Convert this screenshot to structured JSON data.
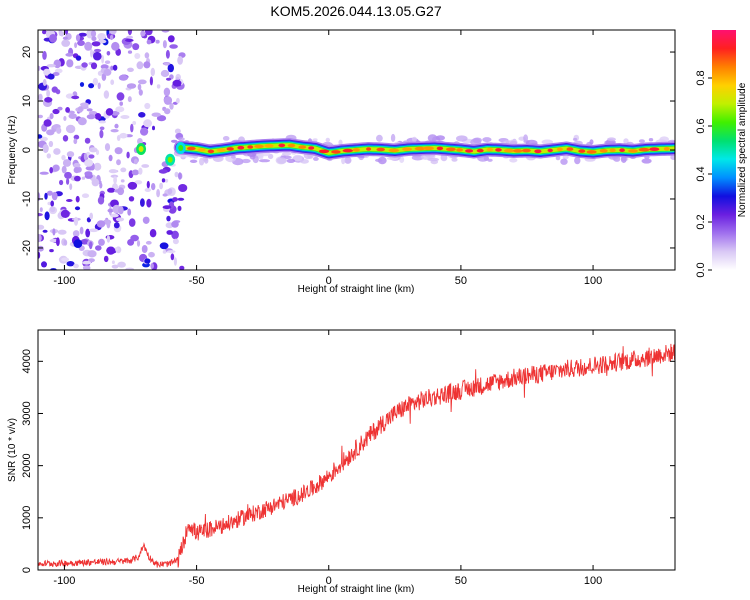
{
  "title": "KOM5.2026.044.13.05.G27",
  "colorbar": {
    "label": "Normalized spectral amplitude",
    "ticks": [
      0.0,
      0.2,
      0.4,
      0.6,
      0.8
    ],
    "tick_labels": [
      "0.0",
      "0.2",
      "0.4",
      "0.6",
      "0.8"
    ],
    "range": [
      0,
      1
    ],
    "stops": [
      "#ffffff",
      "#d9c8f5",
      "#a070ee",
      "#6a1fe0",
      "#1010e0",
      "#0090ff",
      "#00e8e8",
      "#00e070",
      "#40f000",
      "#c0f000",
      "#ffd000",
      "#ff8000",
      "#ff2020",
      "#ff1070"
    ]
  },
  "chart_data": [
    {
      "type": "heatmap",
      "name": "spectrogram",
      "xlabel": "Height of straight line (km)",
      "ylabel": "Frequency (Hz)",
      "xlim": [
        -110,
        131
      ],
      "ylim": [
        -24.5,
        24.5
      ],
      "xticks": [
        -100,
        -50,
        0,
        50,
        100
      ],
      "xtick_labels": [
        "-100",
        "-50",
        "0",
        "50",
        "100"
      ],
      "yticks": [
        -20,
        -10,
        0,
        10,
        20
      ],
      "ytick_labels": [
        "-20",
        "-10",
        "0",
        "10",
        "20"
      ],
      "noise_region_x": [
        -110,
        -55
      ],
      "ridge": {
        "x": [
          -56,
          -50,
          -45,
          -40,
          -35,
          -30,
          -25,
          -20,
          -15,
          -10,
          -5,
          0,
          5,
          10,
          15,
          20,
          25,
          30,
          35,
          40,
          45,
          50,
          55,
          60,
          65,
          70,
          75,
          80,
          85,
          90,
          95,
          100,
          105,
          110,
          115,
          120,
          125,
          131
        ],
        "frequency": [
          0.5,
          0.2,
          -0.3,
          0.0,
          0.4,
          0.6,
          0.8,
          0.9,
          1.0,
          0.6,
          0.3,
          -0.6,
          -0.2,
          0.0,
          0.2,
          0.1,
          -0.1,
          0.2,
          0.3,
          0.4,
          0.2,
          0.0,
          -0.3,
          0.1,
          0.0,
          -0.2,
          -0.1,
          -0.3,
          0.0,
          0.3,
          -0.2,
          -0.4,
          -0.1,
          0.0,
          -0.2,
          0.1,
          0.2,
          0.3
        ],
        "amplitude": 0.9
      }
    },
    {
      "type": "line",
      "name": "snr",
      "xlabel": "Height of straight line (km)",
      "ylabel": "SNR (10 * v/v)",
      "color": "#ee3333",
      "xlim": [
        -110,
        131
      ],
      "ylim": [
        0,
        4600
      ],
      "xticks": [
        -100,
        -50,
        0,
        50,
        100
      ],
      "xtick_labels": [
        "-100",
        "-50",
        "0",
        "50",
        "100"
      ],
      "yticks": [
        0,
        1000,
        2000,
        3000,
        4000
      ],
      "ytick_labels": [
        "0",
        "1000",
        "2000",
        "3000",
        "4000"
      ],
      "x": [
        -110,
        -100,
        -90,
        -80,
        -75,
        -72,
        -70,
        -68,
        -65,
        -60,
        -57,
        -55,
        -53,
        -50,
        -45,
        -40,
        -35,
        -30,
        -25,
        -20,
        -15,
        -10,
        -5,
        0,
        5,
        10,
        15,
        20,
        25,
        30,
        35,
        40,
        45,
        50,
        55,
        60,
        65,
        70,
        75,
        80,
        85,
        90,
        95,
        100,
        105,
        110,
        115,
        120,
        125,
        131
      ],
      "y": [
        120,
        130,
        150,
        160,
        180,
        250,
        480,
        250,
        100,
        120,
        200,
        500,
        900,
        700,
        780,
        850,
        950,
        1050,
        1150,
        1250,
        1350,
        1450,
        1600,
        1800,
        2050,
        2300,
        2550,
        2800,
        3000,
        3150,
        3250,
        3320,
        3380,
        3450,
        3500,
        3560,
        3620,
        3680,
        3720,
        3760,
        3800,
        3850,
        3880,
        3920,
        3950,
        3990,
        4020,
        4070,
        4120,
        4180
      ],
      "noise_amplitude": 180
    }
  ]
}
